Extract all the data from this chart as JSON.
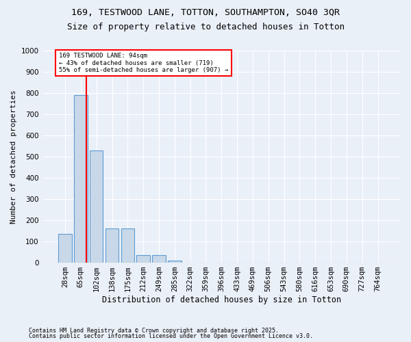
{
  "title1": "169, TESTWOOD LANE, TOTTON, SOUTHAMPTON, SO40 3QR",
  "title2": "Size of property relative to detached houses in Totton",
  "xlabel": "Distribution of detached houses by size in Totton",
  "ylabel": "Number of detached properties",
  "footnote1": "Contains HM Land Registry data © Crown copyright and database right 2025.",
  "footnote2": "Contains public sector information licensed under the Open Government Licence v3.0.",
  "bin_labels": [
    "28sqm",
    "65sqm",
    "102sqm",
    "138sqm",
    "175sqm",
    "212sqm",
    "249sqm",
    "285sqm",
    "322sqm",
    "359sqm",
    "396sqm",
    "433sqm",
    "469sqm",
    "506sqm",
    "543sqm",
    "580sqm",
    "616sqm",
    "653sqm",
    "690sqm",
    "727sqm",
    "764sqm"
  ],
  "bar_values": [
    135,
    790,
    530,
    160,
    160,
    35,
    35,
    10,
    0,
    0,
    0,
    0,
    0,
    0,
    0,
    0,
    0,
    0,
    0,
    0,
    0
  ],
  "bar_color": "#c8d8e8",
  "bar_edge_color": "#5b9bd5",
  "background_color": "#eaf0f8",
  "grid_color": "#ffffff",
  "red_line_x": 1.35,
  "annotation_line1": "169 TESTWOOD LANE: 94sqm",
  "annotation_line2": "← 43% of detached houses are smaller (719)",
  "annotation_line3": "55% of semi-detached houses are larger (907) →",
  "ylim": [
    0,
    1000
  ],
  "yticks": [
    0,
    100,
    200,
    300,
    400,
    500,
    600,
    700,
    800,
    900,
    1000
  ],
  "title1_fontsize": 9.5,
  "title2_fontsize": 9,
  "ylabel_fontsize": 8,
  "xlabel_fontsize": 8.5,
  "tick_fontsize": 7.5,
  "footnote_fontsize": 6
}
